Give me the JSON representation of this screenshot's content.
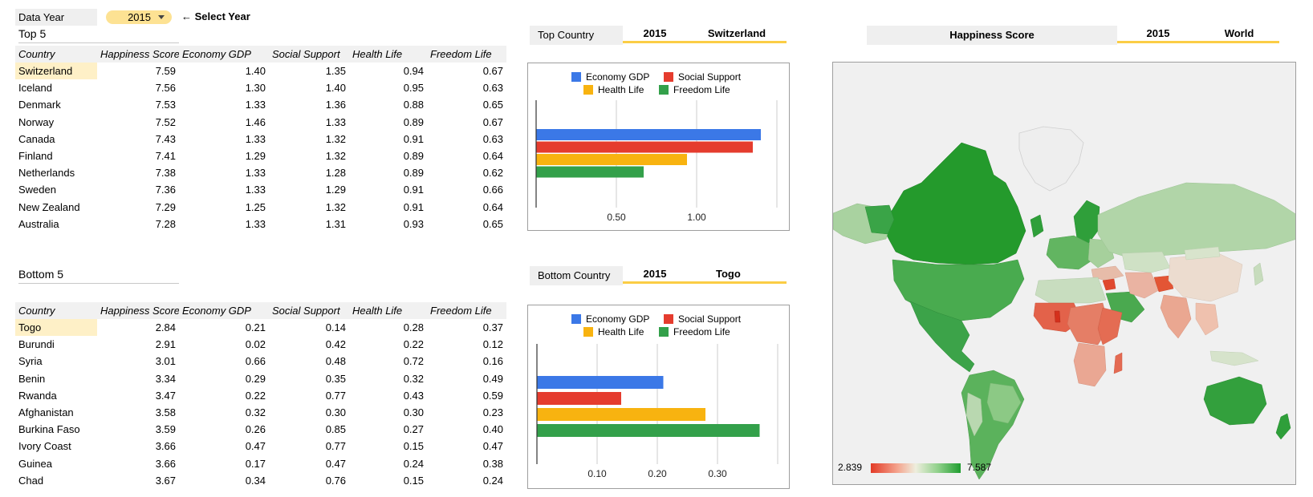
{
  "year_selector": {
    "label": "Data Year",
    "value": "2015",
    "hint": "← Select Year"
  },
  "columns": [
    "Country",
    "Happiness Score",
    "Economy GDP",
    "Social Support",
    "Health Life",
    "Freedom Life"
  ],
  "top5": {
    "title": "Top 5",
    "rows": [
      [
        "Switzerland",
        "7.59",
        "1.40",
        "1.35",
        "0.94",
        "0.67"
      ],
      [
        "Iceland",
        "7.56",
        "1.30",
        "1.40",
        "0.95",
        "0.63"
      ],
      [
        "Denmark",
        "7.53",
        "1.33",
        "1.36",
        "0.88",
        "0.65"
      ],
      [
        "Norway",
        "7.52",
        "1.46",
        "1.33",
        "0.89",
        "0.67"
      ],
      [
        "Canada",
        "7.43",
        "1.33",
        "1.32",
        "0.91",
        "0.63"
      ],
      [
        "Finland",
        "7.41",
        "1.29",
        "1.32",
        "0.89",
        "0.64"
      ],
      [
        "Netherlands",
        "7.38",
        "1.33",
        "1.28",
        "0.89",
        "0.62"
      ],
      [
        "Sweden",
        "7.36",
        "1.33",
        "1.29",
        "0.91",
        "0.66"
      ],
      [
        "New Zealand",
        "7.29",
        "1.25",
        "1.32",
        "0.91",
        "0.64"
      ],
      [
        "Australia",
        "7.28",
        "1.33",
        "1.31",
        "0.93",
        "0.65"
      ]
    ]
  },
  "bottom5": {
    "title": "Bottom 5",
    "rows": [
      [
        "Togo",
        "2.84",
        "0.21",
        "0.14",
        "0.28",
        "0.37"
      ],
      [
        "Burundi",
        "2.91",
        "0.02",
        "0.42",
        "0.22",
        "0.12"
      ],
      [
        "Syria",
        "3.01",
        "0.66",
        "0.48",
        "0.72",
        "0.16"
      ],
      [
        "Benin",
        "3.34",
        "0.29",
        "0.35",
        "0.32",
        "0.49"
      ],
      [
        "Rwanda",
        "3.47",
        "0.22",
        "0.77",
        "0.43",
        "0.59"
      ],
      [
        "Afghanistan",
        "3.58",
        "0.32",
        "0.30",
        "0.30",
        "0.23"
      ],
      [
        "Burkina Faso",
        "3.59",
        "0.26",
        "0.85",
        "0.27",
        "0.40"
      ],
      [
        "Ivory Coast",
        "3.66",
        "0.47",
        "0.77",
        "0.15",
        "0.47"
      ],
      [
        "Guinea",
        "3.66",
        "0.17",
        "0.47",
        "0.24",
        "0.38"
      ],
      [
        "Chad",
        "3.67",
        "0.34",
        "0.76",
        "0.15",
        "0.24"
      ]
    ]
  },
  "top_country": {
    "label": "Top Country",
    "year": "2015",
    "country": "Switzerland"
  },
  "bottom_country": {
    "label": "Bottom Country",
    "year": "2015",
    "country": "Togo"
  },
  "map_header": {
    "label": "Happiness Score",
    "year": "2015",
    "region": "World"
  },
  "map_legend": {
    "min": "2.839",
    "max": "7.587"
  },
  "colors": {
    "economy": "#3b78e7",
    "social": "#e53c2e",
    "health": "#f8b310",
    "freedom": "#33a04a",
    "accent": "#fbcd45"
  },
  "chart_data": [
    {
      "type": "bar",
      "orientation": "horizontal",
      "series": [
        {
          "name": "Economy GDP",
          "values": [
            1.4
          ]
        },
        {
          "name": "Social Support",
          "values": [
            1.35
          ]
        },
        {
          "name": "Health Life",
          "values": [
            0.94
          ]
        },
        {
          "name": "Freedom Life",
          "values": [
            0.67
          ]
        }
      ],
      "xlim": [
        0,
        1.5
      ],
      "xticks": [
        0.5,
        1.0
      ],
      "xtick_labels": [
        "0.50",
        "1.00"
      ],
      "legend": "top",
      "grid": true
    },
    {
      "type": "bar",
      "orientation": "horizontal",
      "series": [
        {
          "name": "Economy GDP",
          "values": [
            0.21
          ]
        },
        {
          "name": "Social Support",
          "values": [
            0.14
          ]
        },
        {
          "name": "Health Life",
          "values": [
            0.28
          ]
        },
        {
          "name": "Freedom Life",
          "values": [
            0.37
          ]
        }
      ],
      "xlim": [
        0,
        0.4
      ],
      "xticks": [
        0.1,
        0.2,
        0.3
      ],
      "xtick_labels": [
        "0.10",
        "0.20",
        "0.30"
      ],
      "legend": "top",
      "grid": true
    }
  ]
}
